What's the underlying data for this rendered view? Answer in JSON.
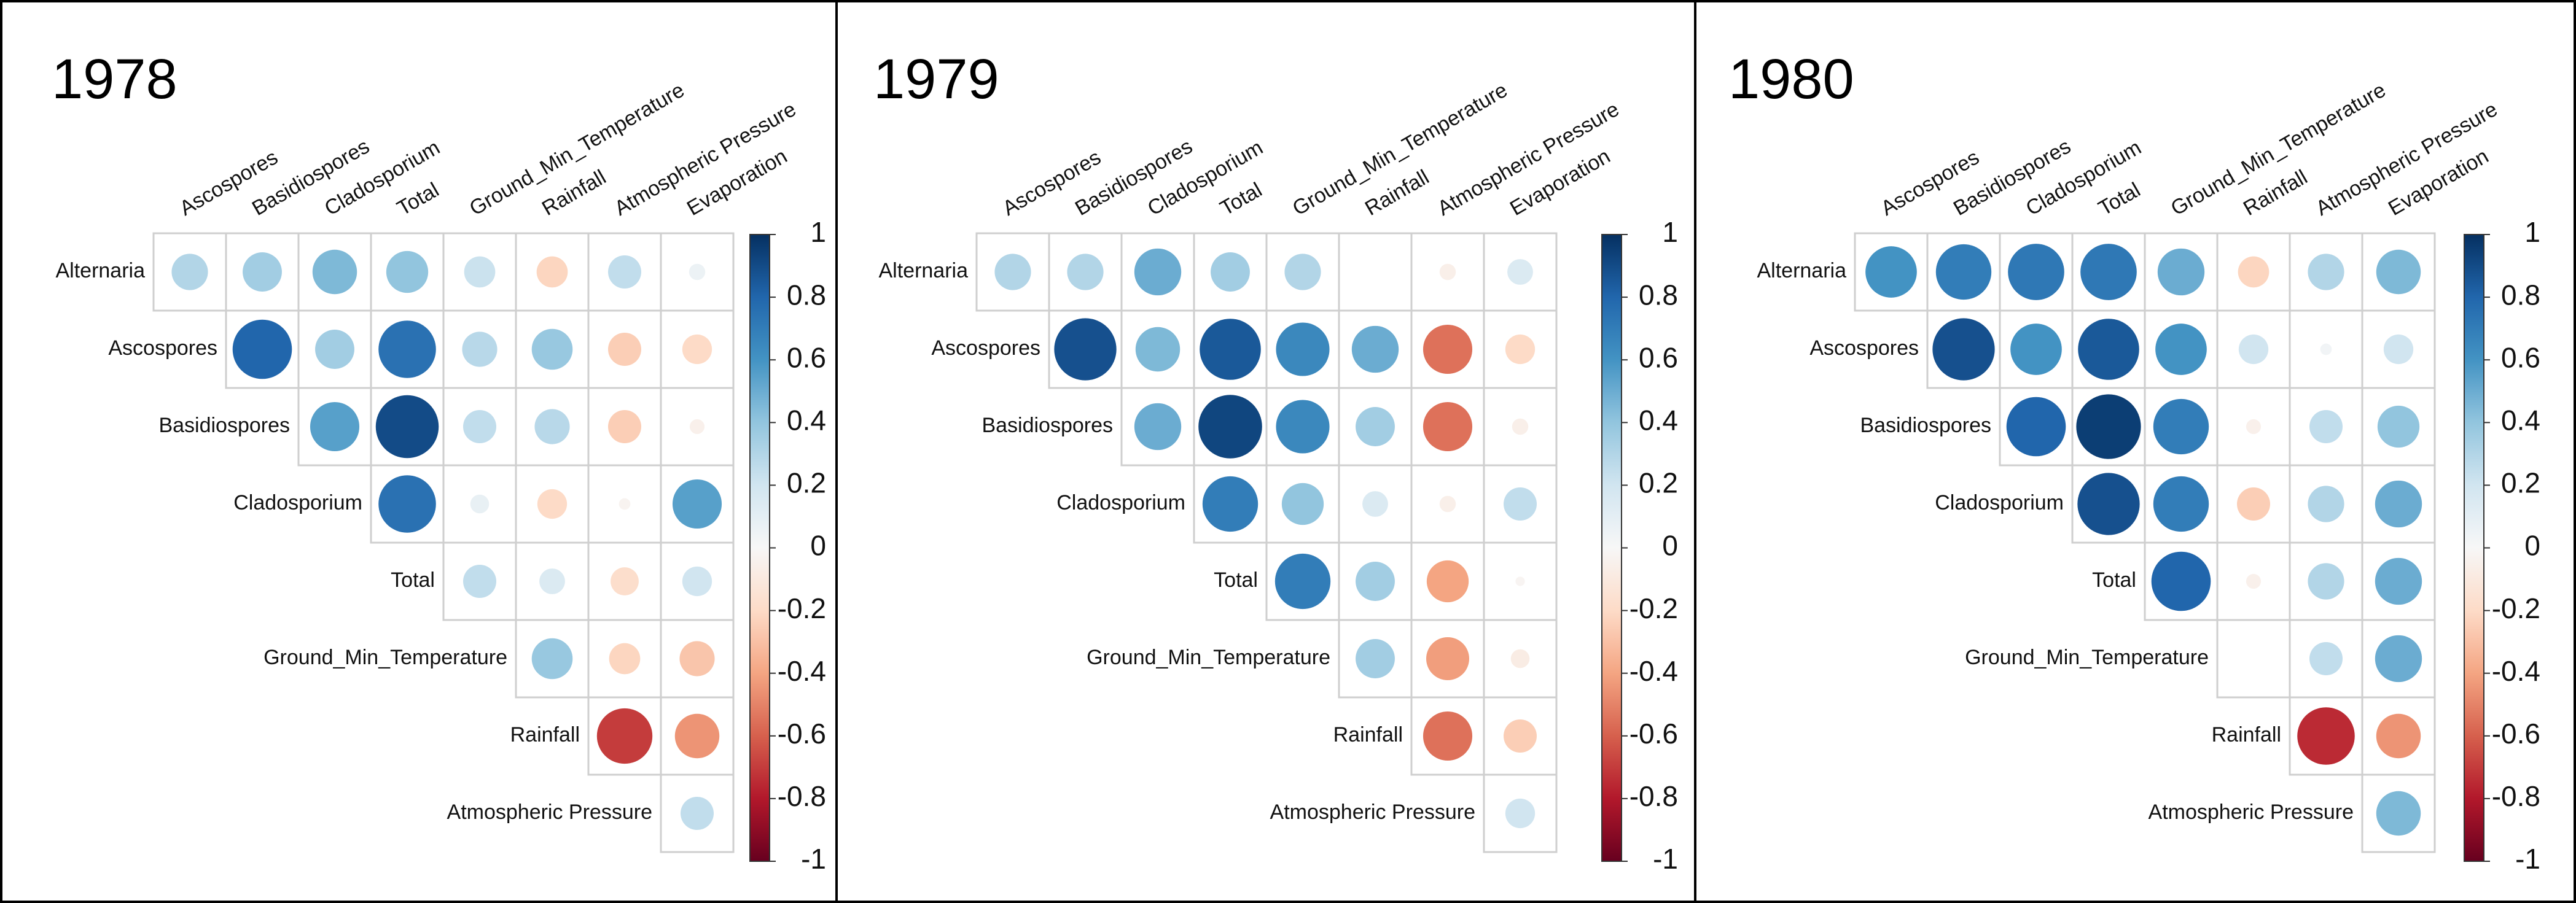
{
  "chart_data": [
    {
      "type": "heatmap",
      "title": "1978",
      "variables": [
        "Alternaria",
        "Ascospores",
        "Basidiospores",
        "Cladosporium",
        "Total",
        "Ground_Min_Temperature",
        "Rainfall",
        "Atmospheric Pressure",
        "Evaporation"
      ],
      "columns": [
        "Ascospores",
        "Basidiospores",
        "Cladosporium",
        "Total",
        "Ground_Min_Temperature",
        "Rainfall",
        "Atmospheric Pressure",
        "Evaporation"
      ],
      "rows": [
        {
          "label": "Alternaria",
          "values": [
            0.3,
            0.35,
            0.45,
            0.4,
            0.22,
            -0.22,
            0.25,
            0.06
          ]
        },
        {
          "label": "Ascospores",
          "values": [
            0.8,
            0.35,
            0.75,
            0.28,
            0.38,
            -0.25,
            -0.2
          ]
        },
        {
          "label": "Basidiospores",
          "values": [
            0.55,
            0.9,
            0.25,
            0.28,
            -0.25,
            -0.05
          ]
        },
        {
          "label": "Cladosporium",
          "values": [
            0.75,
            0.08,
            -0.2,
            -0.03,
            0.55
          ]
        },
        {
          "label": "Total",
          "values": [
            0.25,
            0.15,
            -0.18,
            0.2
          ]
        },
        {
          "label": "Ground_Min_Temperature",
          "values": [
            0.38,
            -0.22,
            -0.28
          ]
        },
        {
          "label": "Rainfall",
          "values": [
            -0.7,
            -0.45
          ]
        },
        {
          "label": "Atmospheric Pressure",
          "values": [
            0.25
          ]
        }
      ],
      "colorbar": {
        "range": [
          -1,
          1
        ],
        "ticks": [
          "1",
          "0.8",
          "0.6",
          "0.4",
          "0.2",
          "0",
          "-0.2",
          "-0.4",
          "-0.6",
          "-0.8",
          "-1"
        ]
      }
    },
    {
      "type": "heatmap",
      "title": "1979",
      "variables": [
        "Alternaria",
        "Ascospores",
        "Basidiospores",
        "Cladosporium",
        "Total",
        "Ground_Min_Temperature",
        "Rainfall",
        "Atmospheric Pressure",
        "Evaporation"
      ],
      "columns": [
        "Ascospores",
        "Basidiospores",
        "Cladosporium",
        "Total",
        "Ground_Min_Temperature",
        "Rainfall",
        "Atmospheric Pressure",
        "Evaporation"
      ],
      "rows": [
        {
          "label": "Alternaria",
          "values": [
            0.3,
            0.3,
            0.5,
            0.35,
            0.3,
            0.0,
            -0.06,
            0.15
          ]
        },
        {
          "label": "Ascospores",
          "values": [
            0.88,
            0.45,
            0.85,
            0.65,
            0.5,
            -0.55,
            -0.2
          ]
        },
        {
          "label": "Basidiospores",
          "values": [
            0.5,
            0.92,
            0.65,
            0.35,
            -0.55,
            -0.06
          ]
        },
        {
          "label": "Cladosporium",
          "values": [
            0.7,
            0.4,
            0.15,
            -0.06,
            0.25
          ]
        },
        {
          "label": "Total",
          "values": [
            0.7,
            0.35,
            -0.4,
            -0.02
          ]
        },
        {
          "label": "Ground_Min_Temperature",
          "values": [
            0.35,
            -0.42,
            -0.08
          ]
        },
        {
          "label": "Rainfall",
          "values": [
            -0.55,
            -0.25
          ]
        },
        {
          "label": "Atmospheric Pressure",
          "values": [
            0.2
          ]
        }
      ],
      "colorbar": {
        "range": [
          -1,
          1
        ],
        "ticks": [
          "1",
          "0.8",
          "0.6",
          "0.4",
          "0.2",
          "0",
          "-0.2",
          "-0.4",
          "-0.6",
          "-0.8",
          "-1"
        ]
      }
    },
    {
      "type": "heatmap",
      "title": "1980",
      "variables": [
        "Alternaria",
        "Ascospores",
        "Basidiospores",
        "Cladosporium",
        "Total",
        "Ground_Min_Temperature",
        "Rainfall",
        "Atmospheric Pressure",
        "Evaporation"
      ],
      "columns": [
        "Ascospores",
        "Basidiospores",
        "Cladosporium",
        "Total",
        "Ground_Min_Temperature",
        "Rainfall",
        "Atmospheric Pressure",
        "Evaporation"
      ],
      "rows": [
        {
          "label": "Alternaria",
          "values": [
            0.6,
            0.7,
            0.72,
            0.72,
            0.5,
            -0.22,
            0.3,
            0.45
          ]
        },
        {
          "label": "Ascospores",
          "values": [
            0.88,
            0.6,
            0.85,
            0.6,
            0.2,
            0.03,
            0.2
          ]
        },
        {
          "label": "Basidiospores",
          "values": [
            0.8,
            0.95,
            0.7,
            -0.05,
            0.25,
            0.4
          ]
        },
        {
          "label": "Cladosporium",
          "values": [
            0.88,
            0.7,
            -0.25,
            0.3,
            0.5
          ]
        },
        {
          "label": "Total",
          "values": [
            0.8,
            -0.05,
            0.3,
            0.5
          ]
        },
        {
          "label": "Ground_Min_Temperature",
          "values": [
            0.0,
            0.25,
            0.5
          ]
        },
        {
          "label": "Rainfall",
          "values": [
            -0.75,
            -0.45
          ]
        },
        {
          "label": "Atmospheric Pressure",
          "values": [
            0.45
          ]
        }
      ],
      "colorbar": {
        "range": [
          -1,
          1
        ],
        "ticks": [
          "1",
          "0.8",
          "0.6",
          "0.4",
          "0.2",
          "0",
          "-0.2",
          "-0.4",
          "-0.6",
          "-0.8",
          "-1"
        ]
      }
    }
  ]
}
